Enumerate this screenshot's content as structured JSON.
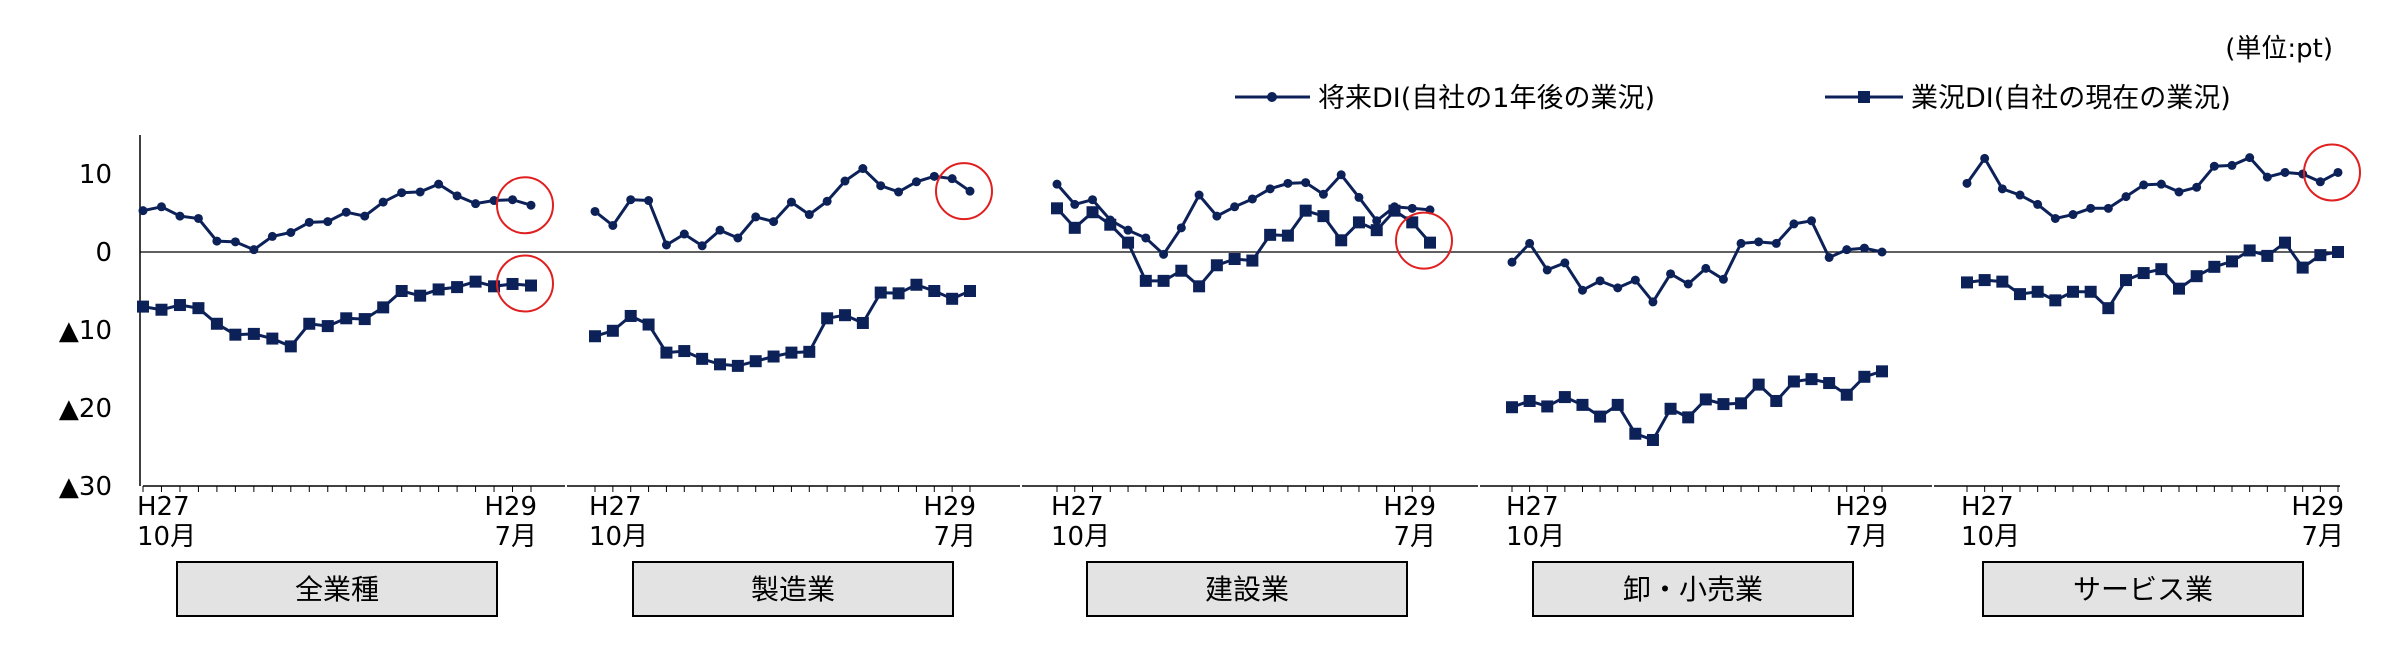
{
  "unit_label": "(単位:pt)",
  "legend": {
    "future": "将来DI(自社の1年後の業況)",
    "current": "業況DI(自社の現在の業況)"
  },
  "colors": {
    "series": "#0d2159",
    "highlight": "#e02020",
    "label_box": "#e3e3e3"
  },
  "chart_data": {
    "type": "line",
    "y_ticks": [
      {
        "value": 10,
        "label": "10"
      },
      {
        "value": 0,
        "label": "0"
      },
      {
        "value": -10,
        "label": "▲10"
      },
      {
        "value": -20,
        "label": "▲20"
      },
      {
        "value": -30,
        "label": "▲30"
      }
    ],
    "ylim": [
      -30,
      15
    ],
    "panels": [
      {
        "name": "全業種",
        "x_start": {
          "line1": "H27",
          "line2": "10月"
        },
        "x_end": {
          "line1": "H29",
          "line2": "7月"
        },
        "series": [
          {
            "name": "将来DI(自社の1年後の業況)",
            "marker": "circle",
            "values": [
              5.3,
              5.8,
              4.6,
              4.3,
              1.4,
              1.3,
              0.3,
              2.0,
              2.5,
              3.8,
              3.9,
              5.1,
              4.6,
              6.4,
              7.6,
              7.7,
              8.7,
              7.2,
              6.2,
              6.6,
              6.7,
              6.0
            ]
          },
          {
            "name": "業況DI(自社の現在の業況)",
            "marker": "square",
            "values": [
              -7.0,
              -7.4,
              -6.8,
              -7.2,
              -9.2,
              -10.6,
              -10.5,
              -11.1,
              -12.1,
              -9.2,
              -9.5,
              -8.5,
              -8.6,
              -7.1,
              -5.0,
              -5.6,
              -4.8,
              -4.5,
              -3.8,
              -4.4,
              -4.1,
              -4.3
            ]
          }
        ],
        "highlight_circles": true
      },
      {
        "name": "製造業",
        "x_start": {
          "line1": "H27",
          "line2": "10月"
        },
        "x_end": {
          "line1": "H29",
          "line2": "7月"
        },
        "series": [
          {
            "name": "将来DI(自社の1年後の業況)",
            "marker": "circle",
            "values": [
              5.2,
              3.4,
              6.7,
              6.6,
              0.9,
              2.3,
              0.8,
              2.8,
              1.8,
              4.5,
              3.9,
              6.4,
              4.8,
              6.5,
              9.1,
              10.7,
              8.5,
              7.7,
              9.0,
              9.7,
              9.4,
              7.8
            ]
          },
          {
            "name": "業況DI(自社の現在の業況)",
            "marker": "square",
            "values": [
              -10.8,
              -10.1,
              -8.2,
              -9.3,
              -12.9,
              -12.7,
              -13.7,
              -14.4,
              -14.6,
              -14.0,
              -13.4,
              -12.9,
              -12.8,
              -8.5,
              -8.1,
              -9.1,
              -5.2,
              -5.3,
              -4.2,
              -5.0,
              -6.0,
              -5.0
            ]
          }
        ],
        "highlight_circles": true
      },
      {
        "name": "建設業",
        "x_start": {
          "line1": "H27",
          "line2": "10月"
        },
        "x_end": {
          "line1": "H29",
          "line2": "7月"
        },
        "series": [
          {
            "name": "将来DI(自社の1年後の業況)",
            "marker": "circle",
            "values": [
              8.7,
              6.1,
              6.7,
              4.1,
              2.8,
              1.8,
              -0.3,
              3.1,
              7.3,
              4.6,
              5.8,
              6.8,
              8.1,
              8.8,
              8.9,
              7.4,
              9.9,
              7.0,
              4.0,
              5.8,
              5.6,
              5.4
            ]
          },
          {
            "name": "業況DI(自社の現在の業況)",
            "marker": "square",
            "values": [
              5.6,
              3.1,
              5.1,
              3.5,
              1.2,
              -3.7,
              -3.7,
              -2.4,
              -4.4,
              -1.7,
              -0.9,
              -1.1,
              2.2,
              2.1,
              5.3,
              4.6,
              1.5,
              3.8,
              2.8,
              5.3,
              3.8,
              1.2
            ]
          }
        ],
        "highlight_circles": true
      },
      {
        "name": "卸・小売業",
        "x_start": {
          "line1": "H27",
          "line2": "10月"
        },
        "x_end": {
          "line1": "H29",
          "line2": "7月"
        },
        "series": [
          {
            "name": "将来DI(自社の1年後の業況)",
            "marker": "circle",
            "values": [
              -1.3,
              1.1,
              -2.3,
              -1.4,
              -4.9,
              -3.7,
              -4.6,
              -3.6,
              -6.4,
              -2.8,
              -4.1,
              -2.1,
              -3.5,
              1.1,
              1.3,
              1.1,
              3.6,
              4.0,
              -0.7,
              0.3,
              0.5,
              0.0
            ]
          },
          {
            "name": "業況DI(自社の現在の業況)",
            "marker": "square",
            "values": [
              -19.9,
              -19.1,
              -19.8,
              -18.6,
              -19.6,
              -21.1,
              -19.6,
              -23.3,
              -24.1,
              -20.1,
              -21.2,
              -18.9,
              -19.5,
              -19.4,
              -17.0,
              -19.1,
              -16.6,
              -16.3,
              -16.8,
              -18.3,
              -16.0,
              -15.3
            ]
          }
        ],
        "highlight_circles": false
      },
      {
        "name": "サービス業",
        "x_start": {
          "line1": "H27",
          "line2": "10月"
        },
        "x_end": {
          "line1": "H29",
          "line2": "7月"
        },
        "series": [
          {
            "name": "将来DI(自社の1年後の業況)",
            "marker": "circle",
            "values": [
              8.8,
              12.0,
              8.1,
              7.3,
              6.1,
              4.3,
              4.8,
              5.6,
              5.6,
              7.1,
              8.6,
              8.7,
              7.7,
              8.3,
              11.0,
              11.1,
              12.1,
              9.6,
              10.2,
              10.0,
              9.0,
              10.2
            ]
          },
          {
            "name": "業況DI(自社の現在の業況)",
            "marker": "square",
            "values": [
              -3.9,
              -3.6,
              -3.8,
              -5.4,
              -5.1,
              -6.2,
              -5.1,
              -5.1,
              -7.2,
              -3.6,
              -2.7,
              -2.2,
              -4.7,
              -3.1,
              -1.9,
              -1.2,
              0.2,
              -0.5,
              1.2,
              -2.0,
              -0.4,
              0.0
            ]
          }
        ],
        "highlight_circles": true
      }
    ]
  }
}
